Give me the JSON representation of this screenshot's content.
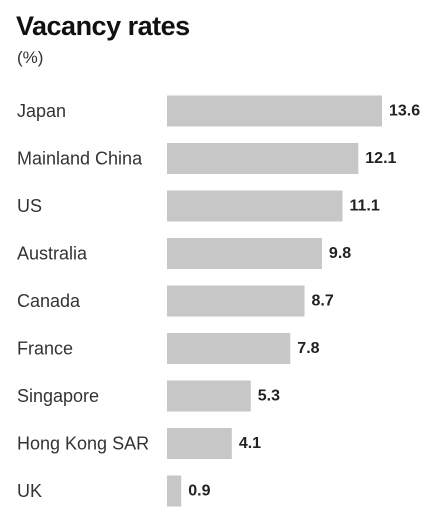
{
  "chart_data": {
    "type": "bar",
    "orientation": "horizontal",
    "title": "Vacancy rates",
    "subtitle": "(%)",
    "categories": [
      "Japan",
      "Mainland China",
      "US",
      "Australia",
      "Canada",
      "France",
      "Singapore",
      "Hong Kong SAR",
      "UK"
    ],
    "values": [
      13.6,
      12.1,
      11.1,
      9.8,
      8.7,
      7.8,
      5.3,
      4.1,
      0.9
    ],
    "value_labels": [
      "13.6",
      "12.1",
      "11.1",
      "9.8",
      "8.7",
      "7.8",
      "5.3",
      "4.1",
      "0.9"
    ],
    "xlim": [
      0,
      13.6
    ],
    "grid": false,
    "legend": "none",
    "bar_color": "#c7c7c7"
  }
}
